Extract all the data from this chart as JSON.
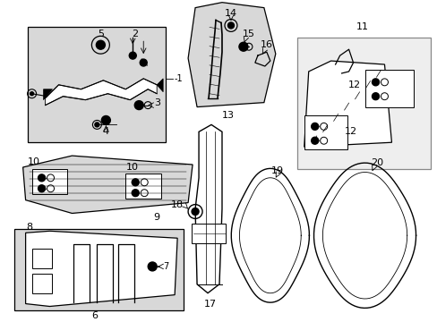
{
  "bg_color": "#ffffff",
  "fig_width": 4.89,
  "fig_height": 3.6,
  "dpi": 100,
  "fill_gray": "#d8d8d8",
  "fill_light": "#eeeeee"
}
